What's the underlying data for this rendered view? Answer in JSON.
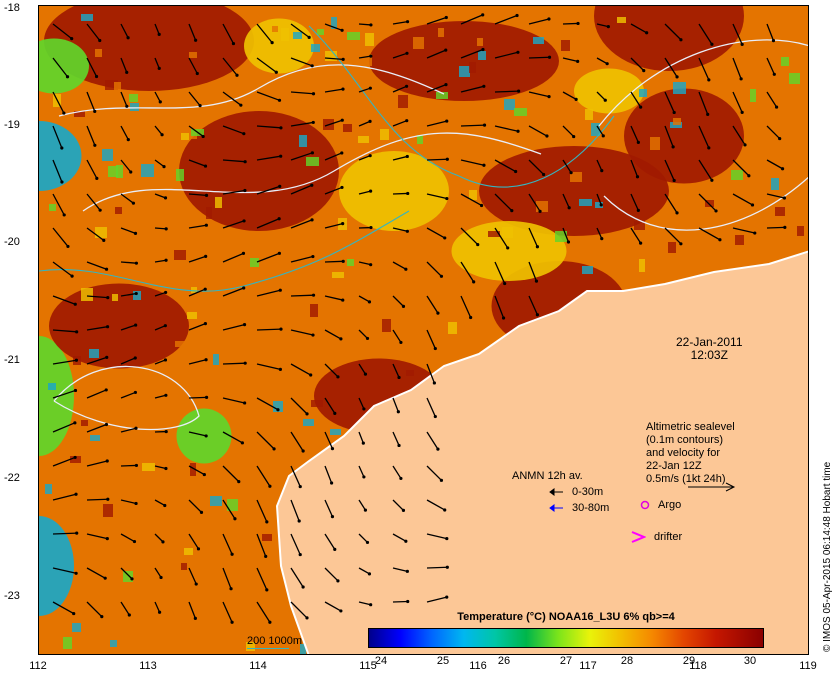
{
  "map": {
    "date": "22-Jan-2011",
    "time": "12:03Z",
    "y_ticks": [
      "-18",
      "-19",
      "-20",
      "-21",
      "-22",
      "-23"
    ],
    "x_ticks": [
      "112",
      "113",
      "114",
      "115",
      "116",
      "117",
      "118",
      "119"
    ],
    "credit": "© IMOS 05-Apr-2015 06:14:48 Hobart time",
    "altimetry_text": [
      "Altimetric sealevel",
      "(0.1m contours)",
      "and velocity for",
      "22-Jan 12Z",
      "0.5m/s (1kt 24h)"
    ],
    "anmn_title": "ANMN 12h av.",
    "anmn_0_30": "0-30m",
    "anmn_30_80": "30-80m",
    "argo": "Argo",
    "drifter": "drifter",
    "bathymetry": "200  1000m",
    "colorbar_title": "Temperature (°C) NOAA16_L3U 6% qb>=4",
    "colorbar_ticks": [
      "24",
      "25",
      "26",
      "27",
      "28",
      "29",
      "30"
    ],
    "colors": {
      "land": "#fcc796",
      "hot": "#a11a00",
      "warm": "#e47400",
      "mid": "#efc100",
      "cool": "#61d62a",
      "cold": "#1ba7c6",
      "contour": "#e9eef9",
      "bathymetry": "#35b5c0",
      "argo": "#e000e0",
      "drifter": "#ff00ff",
      "anmn_shallow": "#000000",
      "anmn_deep": "#0000ff"
    },
    "icons": {
      "argo": "argo-icon",
      "drifter": "drifter-icon",
      "arrow_0_30": "black-arrow-icon",
      "arrow_30_80": "blue-arrow-icon"
    }
  }
}
